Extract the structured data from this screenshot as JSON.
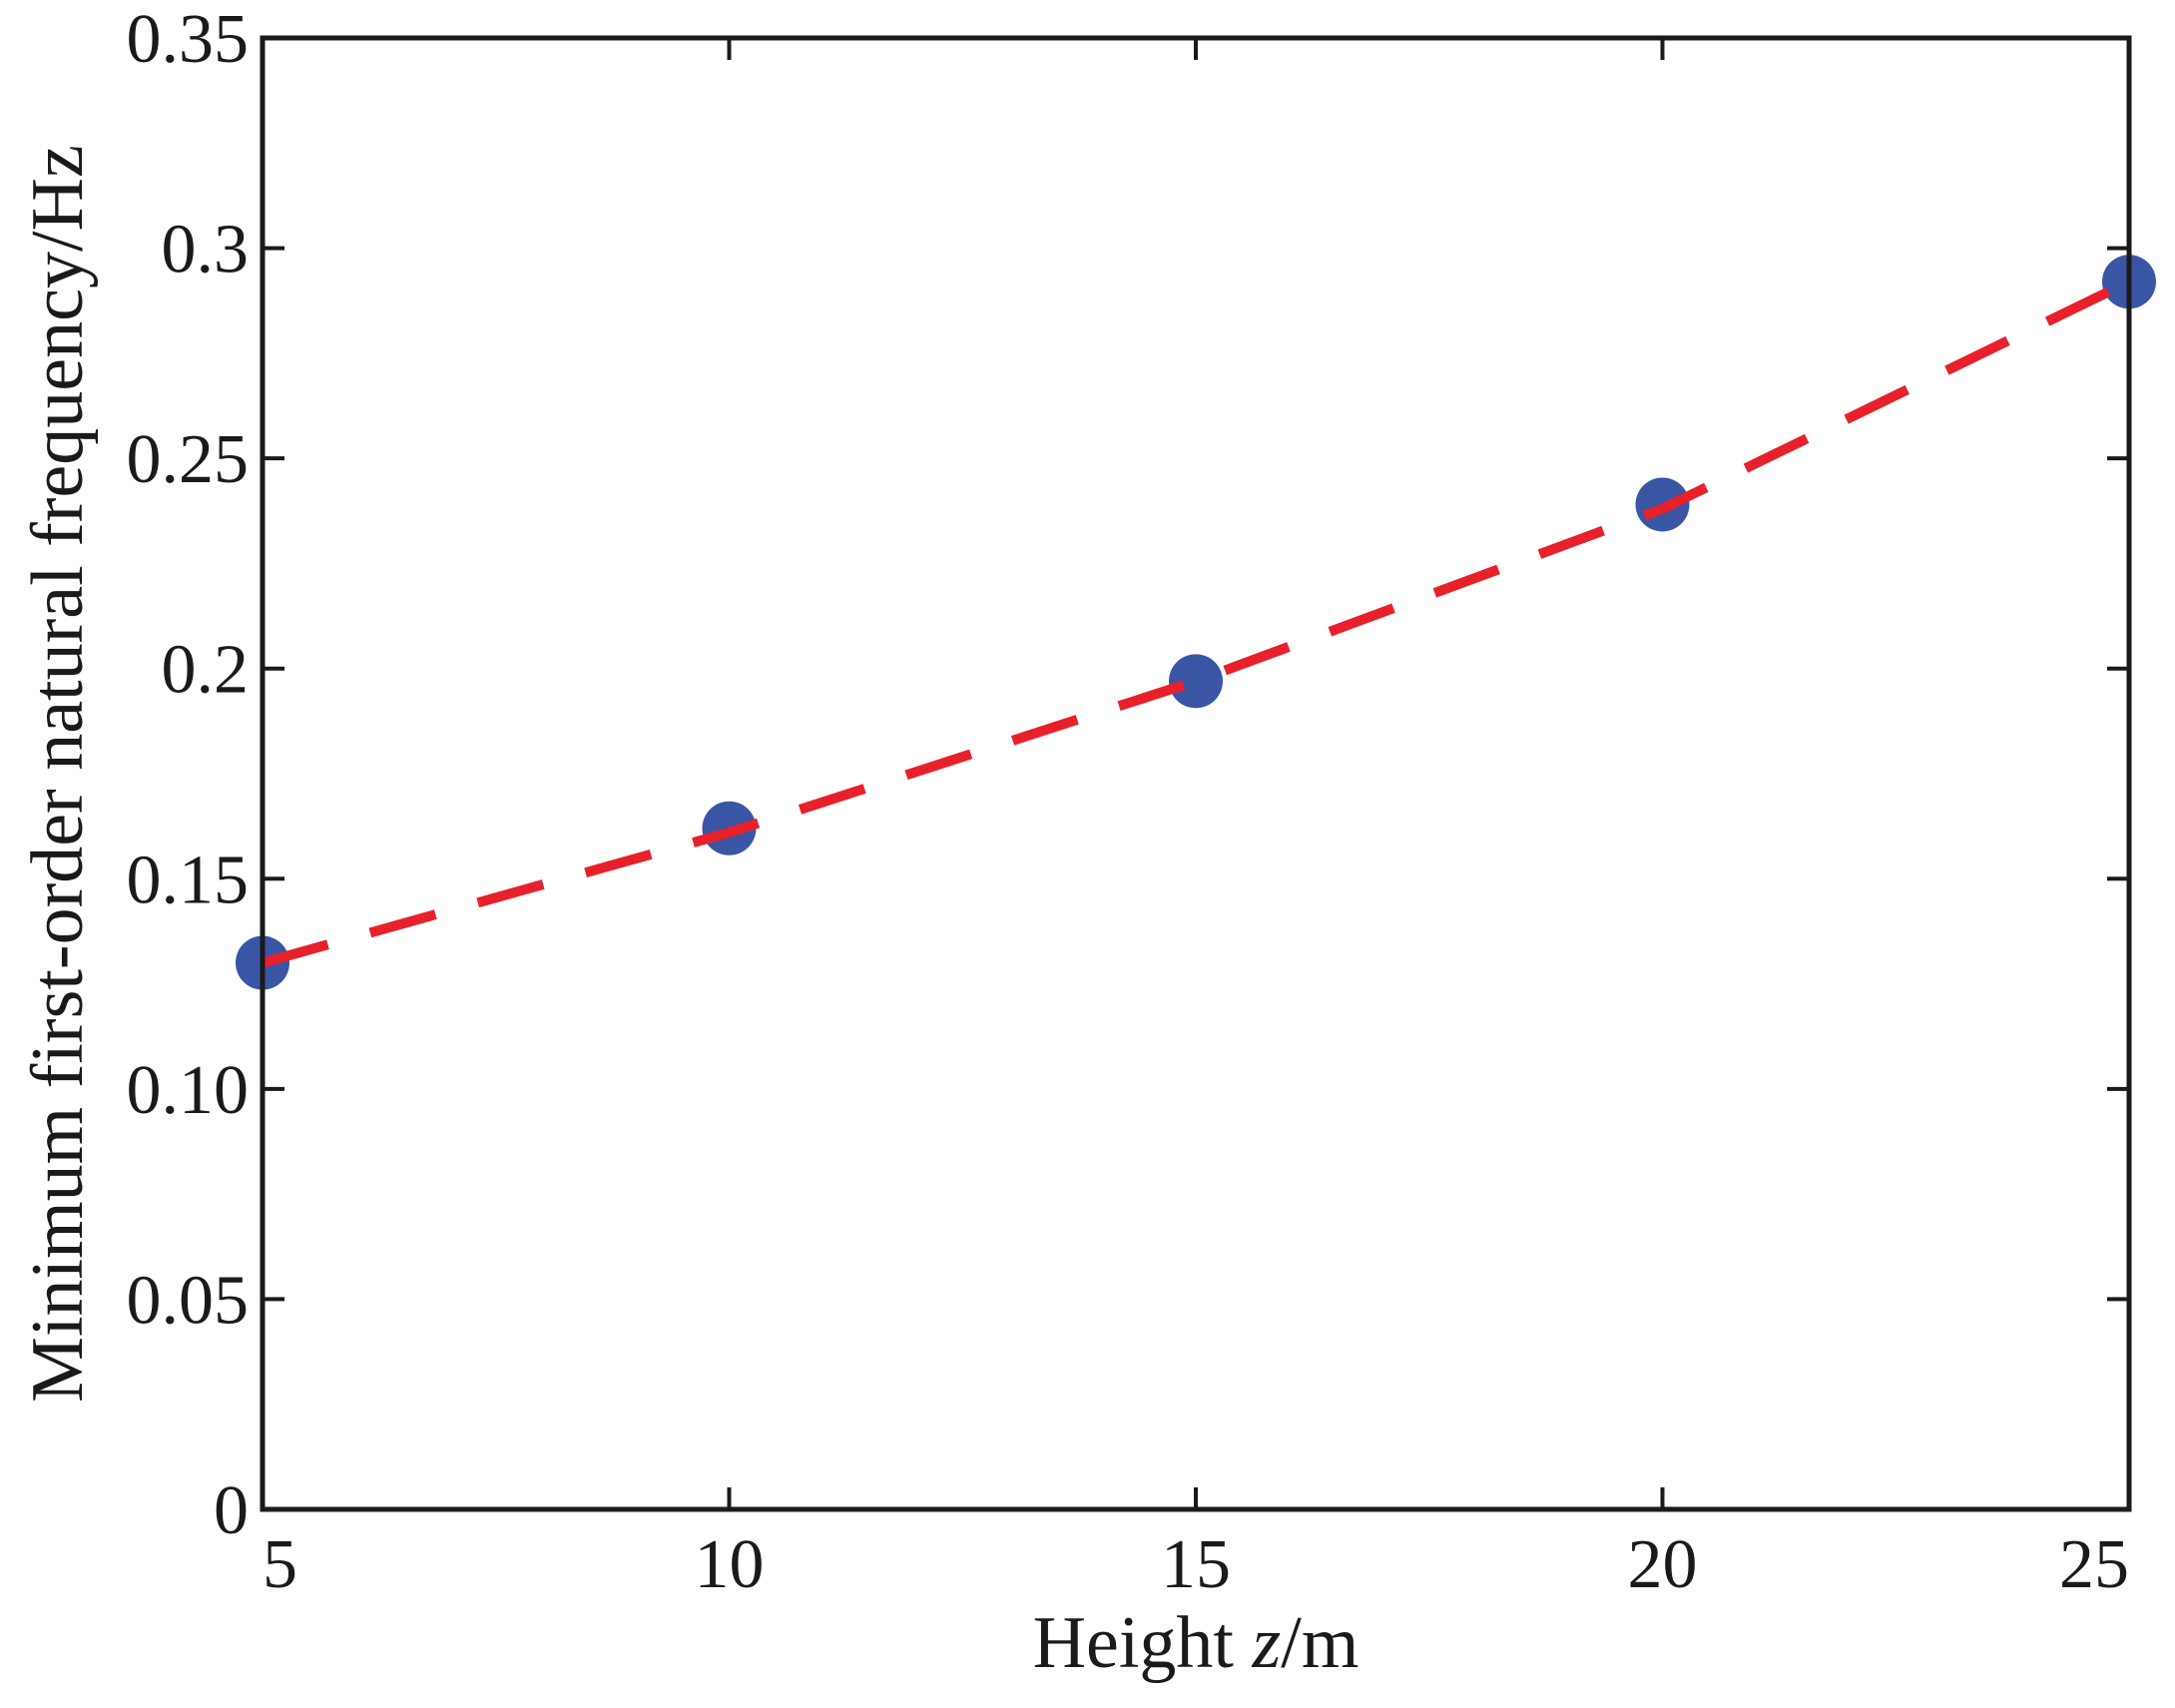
{
  "chart_data": {
    "type": "line",
    "title": "",
    "xlabel_prefix": "Height ",
    "xlabel_var": "z",
    "xlabel_suffix": "/m",
    "ylabel": "Minimum first-order natural frequency/Hz",
    "xlim": [
      5,
      25
    ],
    "ylim": [
      0,
      0.35
    ],
    "x_ticks": [
      5,
      10,
      15,
      20,
      25
    ],
    "x_tick_labels": [
      "5",
      "10",
      "15",
      "20",
      "25"
    ],
    "y_ticks": [
      0,
      0.05,
      0.1,
      0.15,
      0.2,
      0.25,
      0.3,
      0.35
    ],
    "y_tick_labels": [
      "0",
      "0.05",
      "0.10",
      "0.15",
      "0.2",
      "0.25",
      "0.3",
      "0.35"
    ],
    "grid": false,
    "legend": "none",
    "series": [
      {
        "style": "markers",
        "marker": "circle",
        "color": "#3a55a4",
        "x": [
          5,
          10,
          15,
          20,
          25
        ],
        "y": [
          0.13,
          0.162,
          0.197,
          0.239,
          0.292
        ]
      },
      {
        "style": "dashed-line",
        "color": "#e8202a",
        "x": [
          5,
          10,
          15,
          20,
          25
        ],
        "y": [
          0.13,
          0.161,
          0.197,
          0.238,
          0.292
        ]
      }
    ]
  }
}
